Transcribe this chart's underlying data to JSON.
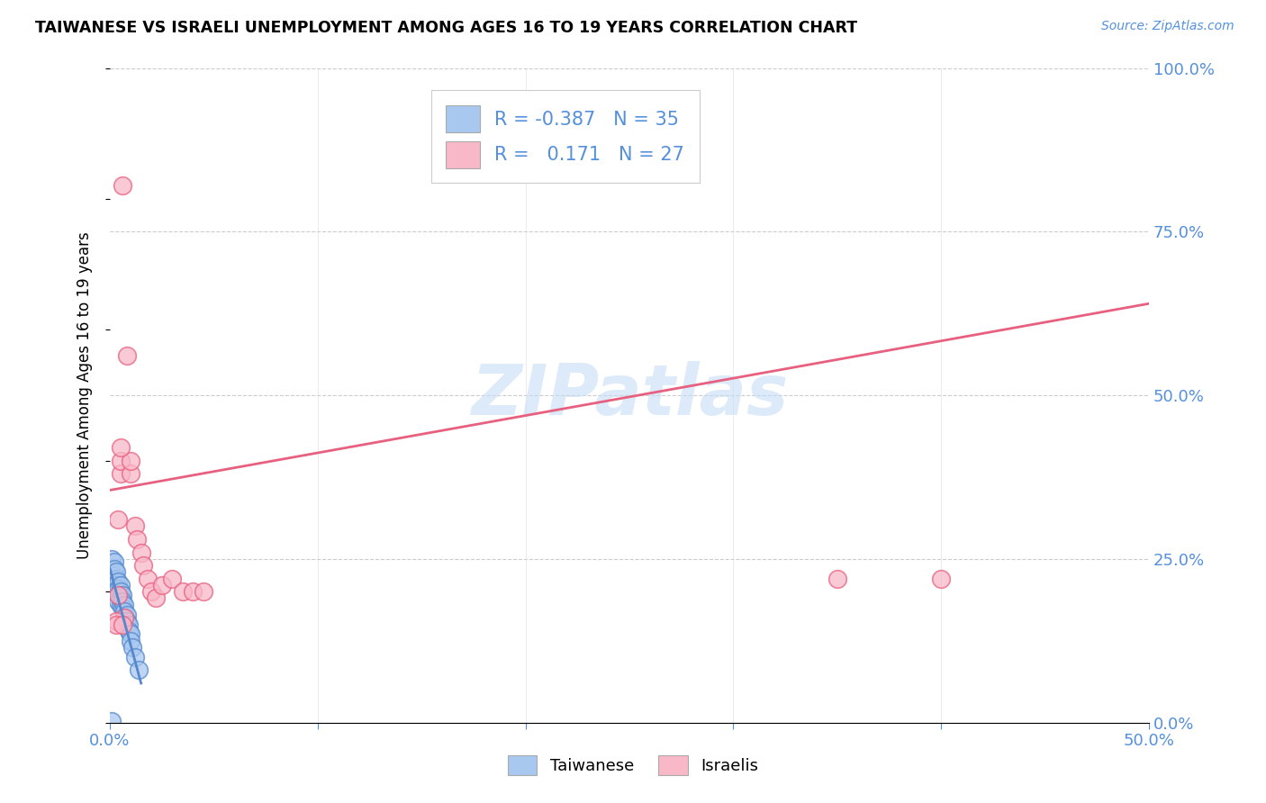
{
  "title": "TAIWANESE VS ISRAELI UNEMPLOYMENT AMONG AGES 16 TO 19 YEARS CORRELATION CHART",
  "source": "Source: ZipAtlas.com",
  "ylabel": "Unemployment Among Ages 16 to 19 years",
  "xlim": [
    0.0,
    0.5
  ],
  "ylim": [
    0.0,
    1.0
  ],
  "xticks": [
    0.0,
    0.1,
    0.2,
    0.3,
    0.4,
    0.5
  ],
  "xticklabels": [
    "0.0%",
    "",
    "",
    "",
    "",
    "50.0%"
  ],
  "yticks_right": [
    0.0,
    0.25,
    0.5,
    0.75,
    1.0
  ],
  "yticklabels_right": [
    "0.0%",
    "25.0%",
    "50.0%",
    "75.0%",
    "100.0%"
  ],
  "grid_color": "#cccccc",
  "background_color": "#ffffff",
  "watermark": "ZIPatlas",
  "legend_R_blue": "-0.387",
  "legend_N_blue": "35",
  "legend_R_pink": "0.171",
  "legend_N_pink": "27",
  "blue_scatter_color": "#a8c8f0",
  "blue_edge_color": "#5588cc",
  "pink_scatter_color": "#f8b8c8",
  "pink_edge_color": "#e86080",
  "pink_line_color": "#e86080",
  "blue_line_color": "#5588cc",
  "taiwanese_x": [
    0.001,
    0.001,
    0.001,
    0.002,
    0.002,
    0.002,
    0.002,
    0.003,
    0.003,
    0.003,
    0.003,
    0.004,
    0.004,
    0.004,
    0.004,
    0.005,
    0.005,
    0.005,
    0.005,
    0.006,
    0.006,
    0.006,
    0.007,
    0.007,
    0.007,
    0.008,
    0.008,
    0.009,
    0.009,
    0.01,
    0.01,
    0.011,
    0.012,
    0.014,
    0.001
  ],
  "taiwanese_y": [
    0.25,
    0.23,
    0.21,
    0.245,
    0.225,
    0.235,
    0.215,
    0.22,
    0.23,
    0.21,
    0.2,
    0.215,
    0.205,
    0.195,
    0.185,
    0.21,
    0.2,
    0.19,
    0.18,
    0.195,
    0.185,
    0.175,
    0.18,
    0.17,
    0.16,
    0.165,
    0.155,
    0.15,
    0.14,
    0.135,
    0.125,
    0.115,
    0.1,
    0.08,
    0.002
  ],
  "israeli_x": [
    0.005,
    0.005,
    0.006,
    0.008,
    0.01,
    0.01,
    0.012,
    0.013,
    0.015,
    0.016,
    0.018,
    0.02,
    0.022,
    0.025,
    0.03,
    0.035,
    0.04,
    0.045,
    0.005,
    0.007,
    0.004,
    0.003,
    0.003,
    0.004,
    0.006,
    0.35,
    0.4
  ],
  "israeli_y": [
    0.38,
    0.4,
    0.82,
    0.56,
    0.38,
    0.4,
    0.3,
    0.28,
    0.26,
    0.24,
    0.22,
    0.2,
    0.19,
    0.21,
    0.22,
    0.2,
    0.2,
    0.2,
    0.42,
    0.16,
    0.31,
    0.155,
    0.15,
    0.195,
    0.15,
    0.22,
    0.22
  ],
  "pink_line_x0": 0.0,
  "pink_line_y0": 0.355,
  "pink_line_x1": 0.5,
  "pink_line_y1": 0.64,
  "blue_line_x0": 0.0,
  "blue_line_y0": 0.235,
  "blue_line_x1": 0.015,
  "blue_line_y1": 0.06
}
